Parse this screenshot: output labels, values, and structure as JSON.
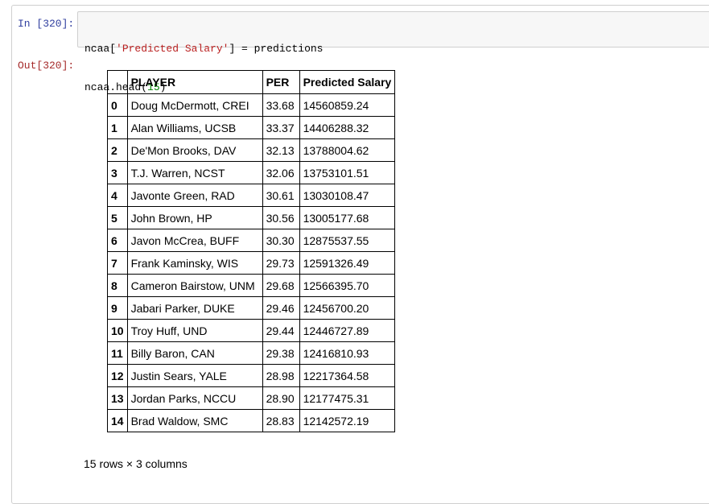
{
  "input_prompt": "In [320]:",
  "output_prompt": "Out[320]:",
  "code": {
    "line1": {
      "a": "ncaa[",
      "b": "'Predicted Salary'",
      "c": "] = predictions"
    },
    "line2": {
      "a": "ncaa.head(",
      "b": "15",
      "c": ")"
    }
  },
  "table": {
    "headers": [
      "",
      "PLAYER",
      "PER",
      "Predicted Salary"
    ],
    "rows": [
      {
        "index": "0",
        "player": "Doug McDermott, CREI",
        "per": "33.68",
        "salary": "14560859.24"
      },
      {
        "index": "1",
        "player": "Alan Williams, UCSB",
        "per": "33.37",
        "salary": "14406288.32"
      },
      {
        "index": "2",
        "player": "De'Mon Brooks, DAV",
        "per": "32.13",
        "salary": "13788004.62"
      },
      {
        "index": "3",
        "player": "T.J. Warren, NCST",
        "per": "32.06",
        "salary": "13753101.51"
      },
      {
        "index": "4",
        "player": "Javonte Green, RAD",
        "per": "30.61",
        "salary": "13030108.47"
      },
      {
        "index": "5",
        "player": "John Brown, HP",
        "per": "30.56",
        "salary": "13005177.68"
      },
      {
        "index": "6",
        "player": "Javon McCrea, BUFF",
        "per": "30.30",
        "salary": "12875537.55"
      },
      {
        "index": "7",
        "player": "Frank Kaminsky, WIS",
        "per": "29.73",
        "salary": "12591326.49"
      },
      {
        "index": "8",
        "player": "Cameron Bairstow, UNM",
        "per": "29.68",
        "salary": "12566395.70"
      },
      {
        "index": "9",
        "player": "Jabari Parker, DUKE",
        "per": "29.46",
        "salary": "12456700.20"
      },
      {
        "index": "10",
        "player": "Troy Huff, UND",
        "per": "29.44",
        "salary": "12446727.89"
      },
      {
        "index": "11",
        "player": "Billy Baron, CAN",
        "per": "29.38",
        "salary": "12416810.93"
      },
      {
        "index": "12",
        "player": "Justin Sears, YALE",
        "per": "28.98",
        "salary": "12217364.58"
      },
      {
        "index": "13",
        "player": "Jordan Parks, NCCU",
        "per": "28.90",
        "salary": "12177475.31"
      },
      {
        "index": "14",
        "player": "Brad Waldow, SMC",
        "per": "28.83",
        "salary": "12142572.19"
      }
    ]
  },
  "shape_note": "15 rows × 3 columns",
  "colors": {
    "in_prompt": "#303f9f",
    "out_prompt": "#a52a2a",
    "string": "#ba2121",
    "number": "#008000",
    "input_bg": "#f7f7f7",
    "border": "#cfcfcf"
  }
}
